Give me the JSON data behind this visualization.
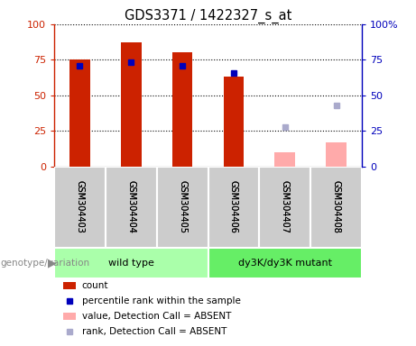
{
  "title": "GDS3371 / 1422327_s_at",
  "samples": [
    "GSM304403",
    "GSM304404",
    "GSM304405",
    "GSM304406",
    "GSM304407",
    "GSM304408"
  ],
  "count_values": [
    75,
    87,
    80,
    63,
    null,
    null
  ],
  "count_absent_values": [
    null,
    null,
    null,
    null,
    10,
    17
  ],
  "percentile_present": [
    71,
    73,
    71,
    66,
    null,
    null
  ],
  "percentile_absent": [
    null,
    null,
    null,
    null,
    28,
    43
  ],
  "groups": [
    {
      "label": "wild type",
      "start": 0,
      "end": 2,
      "color": "#aaffaa"
    },
    {
      "label": "dy3K/dy3K mutant",
      "start": 3,
      "end": 5,
      "color": "#66ee66"
    }
  ],
  "ylim": [
    0,
    100
  ],
  "bar_color_present": "#cc2200",
  "bar_color_absent": "#ffaaaa",
  "marker_color_present": "#0000bb",
  "marker_color_absent": "#aaaacc",
  "bg_color": "#cccccc",
  "group_label": "genotype/variation",
  "legend_items": [
    {
      "label": "count",
      "color": "#cc2200",
      "type": "bar"
    },
    {
      "label": "percentile rank within the sample",
      "color": "#0000bb",
      "type": "marker"
    },
    {
      "label": "value, Detection Call = ABSENT",
      "color": "#ffaaaa",
      "type": "bar"
    },
    {
      "label": "rank, Detection Call = ABSENT",
      "color": "#aaaacc",
      "type": "marker"
    }
  ]
}
